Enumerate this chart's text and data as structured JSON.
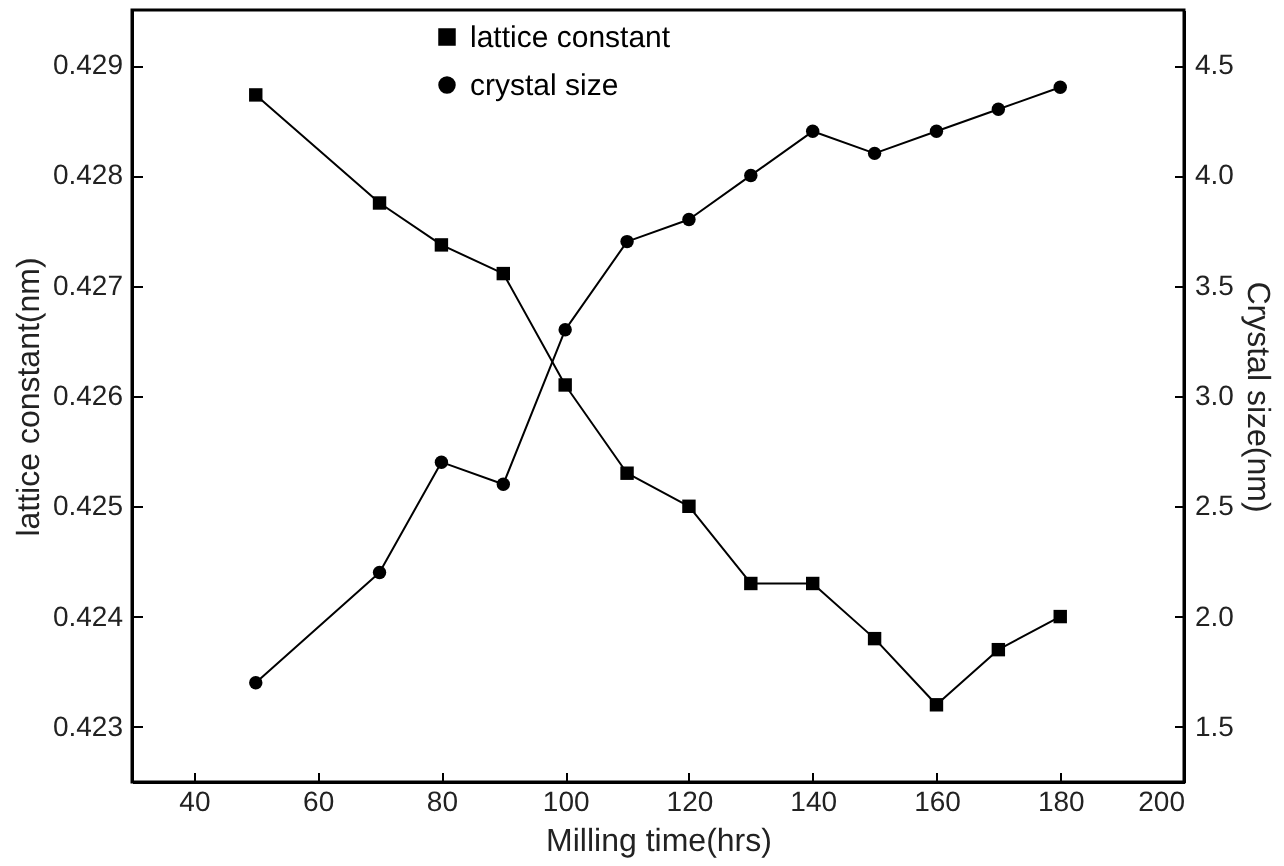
{
  "chart_data": {
    "type": "line",
    "xlabel": "Milling time(hrs)",
    "ylabel": "lattice constant(nm)",
    "y2label": "Crystal size(nm)",
    "x": [
      50,
      70,
      80,
      90,
      100,
      110,
      120,
      130,
      140,
      150,
      160,
      170,
      180
    ],
    "series": [
      {
        "name": "lattice constant",
        "color": "#000000",
        "marker": "square",
        "values": [
          0.42873,
          0.42775,
          0.42737,
          0.42711,
          0.4261,
          0.4253,
          0.425,
          0.4243,
          0.4243,
          0.4238,
          0.4232,
          0.4237,
          0.424
        ]
      },
      {
        "name": "crystal size",
        "color": "#000000",
        "marker": "circle",
        "axis": "y2",
        "values": [
          1.7,
          2.2,
          2.7,
          2.6,
          3.3,
          3.7,
          3.8,
          4.0,
          4.2,
          4.1,
          4.2,
          4.3,
          4.4
        ]
      }
    ],
    "xlim": [
      30,
      200
    ],
    "xticks": [
      40,
      60,
      80,
      100,
      120,
      140,
      160,
      180,
      200
    ],
    "ylim": [
      0.4225,
      0.4295
    ],
    "yticks": [
      0.423,
      0.424,
      0.425,
      0.426,
      0.427,
      0.428,
      0.429
    ],
    "y2lim": [
      1.25,
      4.75
    ],
    "y2ticks": [
      1.5,
      {
        "value": 2,
        "label": "2.0"
      },
      2.5,
      {
        "value": 3,
        "label": "3.0"
      },
      3.5,
      {
        "value": 4,
        "label": "4.0"
      },
      4.5
    ],
    "legend": "top",
    "grid": false,
    "line_style": "solid"
  }
}
